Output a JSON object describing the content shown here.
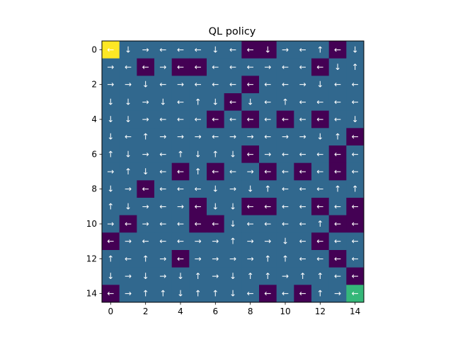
{
  "chart_data": {
    "type": "heatmap",
    "title": "QL policy",
    "xlabel": "",
    "ylabel": "",
    "x_ticks": [
      "0",
      "2",
      "4",
      "6",
      "8",
      "10",
      "12",
      "14"
    ],
    "y_ticks": [
      "0",
      "2",
      "4",
      "6",
      "8",
      "10",
      "12",
      "14"
    ],
    "grid_size": [
      15,
      15
    ],
    "colors": {
      "wall": "#440154",
      "open": "#31688e",
      "start": "#fde725",
      "goal": "#35b779",
      "arrow": "#ffffff"
    },
    "cell_values": [
      [
        "S",
        "O",
        "O",
        "O",
        "O",
        "O",
        "O",
        "O",
        "W",
        "W",
        "O",
        "O",
        "O",
        "W",
        "O"
      ],
      [
        "O",
        "O",
        "W",
        "O",
        "W",
        "W",
        "O",
        "O",
        "O",
        "O",
        "O",
        "O",
        "W",
        "O",
        "O"
      ],
      [
        "O",
        "O",
        "O",
        "O",
        "O",
        "O",
        "O",
        "O",
        "W",
        "O",
        "O",
        "O",
        "O",
        "O",
        "O"
      ],
      [
        "O",
        "O",
        "O",
        "O",
        "O",
        "O",
        "O",
        "W",
        "O",
        "O",
        "O",
        "O",
        "O",
        "O",
        "O"
      ],
      [
        "O",
        "O",
        "O",
        "O",
        "O",
        "O",
        "W",
        "O",
        "W",
        "O",
        "W",
        "O",
        "W",
        "O",
        "O"
      ],
      [
        "O",
        "O",
        "O",
        "O",
        "O",
        "O",
        "O",
        "O",
        "O",
        "O",
        "O",
        "O",
        "O",
        "O",
        "W"
      ],
      [
        "O",
        "O",
        "O",
        "O",
        "O",
        "O",
        "O",
        "O",
        "W",
        "O",
        "O",
        "O",
        "O",
        "W",
        "O"
      ],
      [
        "O",
        "O",
        "O",
        "O",
        "W",
        "O",
        "W",
        "O",
        "O",
        "W",
        "O",
        "W",
        "O",
        "W",
        "O"
      ],
      [
        "O",
        "O",
        "W",
        "O",
        "O",
        "O",
        "O",
        "O",
        "O",
        "O",
        "O",
        "O",
        "O",
        "O",
        "O"
      ],
      [
        "O",
        "O",
        "O",
        "O",
        "O",
        "W",
        "O",
        "O",
        "W",
        "W",
        "O",
        "O",
        "W",
        "O",
        "W"
      ],
      [
        "O",
        "W",
        "O",
        "O",
        "O",
        "W",
        "W",
        "O",
        "O",
        "O",
        "O",
        "O",
        "O",
        "W",
        "W"
      ],
      [
        "W",
        "O",
        "O",
        "O",
        "O",
        "O",
        "O",
        "O",
        "O",
        "O",
        "O",
        "O",
        "W",
        "O",
        "O"
      ],
      [
        "O",
        "O",
        "O",
        "O",
        "W",
        "O",
        "O",
        "O",
        "O",
        "O",
        "O",
        "O",
        "O",
        "W",
        "O"
      ],
      [
        "O",
        "O",
        "O",
        "O",
        "O",
        "O",
        "O",
        "O",
        "O",
        "O",
        "O",
        "O",
        "O",
        "O",
        "W"
      ],
      [
        "W",
        "O",
        "O",
        "O",
        "O",
        "O",
        "O",
        "O",
        "O",
        "W",
        "O",
        "W",
        "O",
        "O",
        "G"
      ]
    ],
    "arrows": [
      [
        "←",
        "↓",
        "→",
        "←",
        "←",
        "←",
        "↓",
        "←",
        "←",
        "↓",
        "→",
        "←",
        "↑",
        "←",
        "↓"
      ],
      [
        "→",
        "←",
        "←",
        "→",
        "←",
        "←",
        "←",
        "←",
        "←",
        "→",
        "←",
        "←",
        "←",
        "↓",
        "↑"
      ],
      [
        "→",
        "→",
        "↓",
        "←",
        "→",
        "←",
        "←",
        "←",
        "←",
        "←",
        "←",
        "→",
        "↓",
        "←",
        "←"
      ],
      [
        "↓",
        "↓",
        "→",
        "↓",
        "←",
        "↑",
        "↓",
        "←",
        "↓",
        "←",
        "↑",
        "←",
        "←",
        "←",
        "←"
      ],
      [
        "↓",
        "↓",
        "→",
        "←",
        "←",
        "←",
        "←",
        "←",
        "←",
        "←",
        "←",
        "←",
        "←",
        "←",
        "↓"
      ],
      [
        "↓",
        "←",
        "↑",
        "→",
        "→",
        "→",
        "←",
        "→",
        "→",
        "←",
        "→",
        "→",
        "↓",
        "↑",
        "←"
      ],
      [
        "↑",
        "↓",
        "→",
        "←",
        "↑",
        "↓",
        "↑",
        "↓",
        "←",
        "→",
        "←",
        "←",
        "←",
        "←",
        "←"
      ],
      [
        "→",
        "↑",
        "↓",
        "←",
        "←",
        "↑",
        "←",
        "←",
        "→",
        "←",
        "←",
        "←",
        "←",
        "←",
        "←"
      ],
      [
        "↓",
        "→",
        "←",
        "←",
        "←",
        "←",
        "↓",
        "→",
        "↓",
        "↑",
        "←",
        "←",
        "←",
        "↑",
        "↑"
      ],
      [
        "↑",
        "↓",
        "→",
        "←",
        "→",
        "←",
        "↓",
        "↓",
        "←",
        "←",
        "←",
        "←",
        "←",
        "←",
        "←"
      ],
      [
        "→",
        "←",
        "→",
        "←",
        "←",
        "←",
        "←",
        "↓",
        "←",
        "←",
        "←",
        "←",
        "↑",
        "←",
        "←"
      ],
      [
        "←",
        "→",
        "←",
        "←",
        "←",
        "→",
        "→",
        "↑",
        "→",
        "→",
        "↓",
        "←",
        "←",
        "←",
        "←"
      ],
      [
        "↑",
        "←",
        "↑",
        "→",
        "←",
        "→",
        "→",
        "→",
        "→",
        "↑",
        "↑",
        "←",
        "←",
        "←",
        "←"
      ],
      [
        "↓",
        "→",
        "↓",
        "→",
        "↓",
        "↑",
        "→",
        "↓",
        "↑",
        "↑",
        "→",
        "↑",
        "↑",
        "←",
        "←"
      ],
      [
        "←",
        "→",
        "↑",
        "↑",
        "↓",
        "↑",
        "↑",
        "↓",
        "←",
        "←",
        "←",
        "←",
        "↑",
        "→",
        "←"
      ]
    ]
  }
}
